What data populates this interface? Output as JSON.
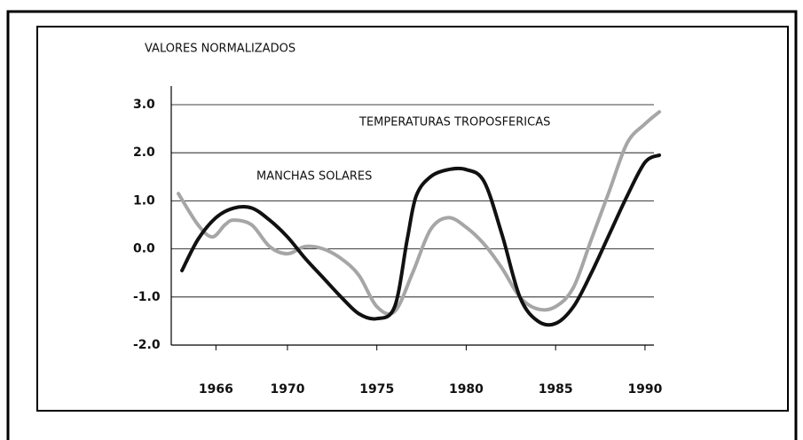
{
  "chart_data": {
    "type": "line",
    "y_axis_label": "VALORES NORMALIZADOS",
    "annotations": [
      "TEMPERATURAS TROPOSFERICAS",
      "MANCHAS SOLARES"
    ],
    "xlim": [
      1963.5,
      1990.5
    ],
    "xticks": [
      1966,
      1970,
      1975,
      1980,
      1985,
      1990
    ],
    "ylim": [
      -2,
      3
    ],
    "yticks": [
      {
        "value": -2,
        "label": "-2.0"
      },
      {
        "value": -1,
        "label": "-1.0"
      },
      {
        "value": 0,
        "label": "0.0"
      },
      {
        "value": 1,
        "label": "1.0"
      },
      {
        "value": 2,
        "label": "2.0"
      },
      {
        "value": 3,
        "label": "3.0"
      }
    ],
    "grid": true,
    "series": [
      {
        "name": "MANCHAS SOLARES",
        "color": "#111111",
        "x": [
          1964.1,
          1965,
          1966,
          1967,
          1968,
          1969,
          1970,
          1971,
          1972,
          1973,
          1974,
          1975,
          1976,
          1976.7,
          1977.2,
          1978,
          1979,
          1980,
          1981,
          1982,
          1983,
          1984,
          1985,
          1986,
          1987,
          1988,
          1989,
          1990,
          1990.8
        ],
        "values": [
          -0.45,
          0.2,
          0.65,
          0.85,
          0.85,
          0.6,
          0.25,
          -0.2,
          -0.6,
          -1.0,
          -1.35,
          -1.45,
          -1.2,
          0.2,
          1.1,
          1.5,
          1.65,
          1.65,
          1.4,
          0.3,
          -1.0,
          -1.5,
          -1.55,
          -1.2,
          -0.5,
          0.3,
          1.1,
          1.8,
          1.95
        ]
      },
      {
        "name": "TEMPERATURAS TROPOSFERICAS",
        "color": "#a6a6a6",
        "x": [
          1963.9,
          1965,
          1965.8,
          1966.5,
          1967,
          1968,
          1969,
          1970,
          1971,
          1972,
          1973,
          1974,
          1975,
          1976,
          1977,
          1978,
          1979,
          1980,
          1981,
          1982,
          1983,
          1984,
          1985,
          1986,
          1987,
          1988,
          1989,
          1990,
          1990.8
        ],
        "values": [
          1.15,
          0.5,
          0.25,
          0.5,
          0.6,
          0.5,
          0.05,
          -0.1,
          0.05,
          0.0,
          -0.2,
          -0.55,
          -1.2,
          -1.3,
          -0.5,
          0.4,
          0.65,
          0.45,
          0.1,
          -0.4,
          -1.0,
          -1.25,
          -1.2,
          -0.8,
          0.2,
          1.2,
          2.2,
          2.6,
          2.85
        ]
      }
    ]
  }
}
